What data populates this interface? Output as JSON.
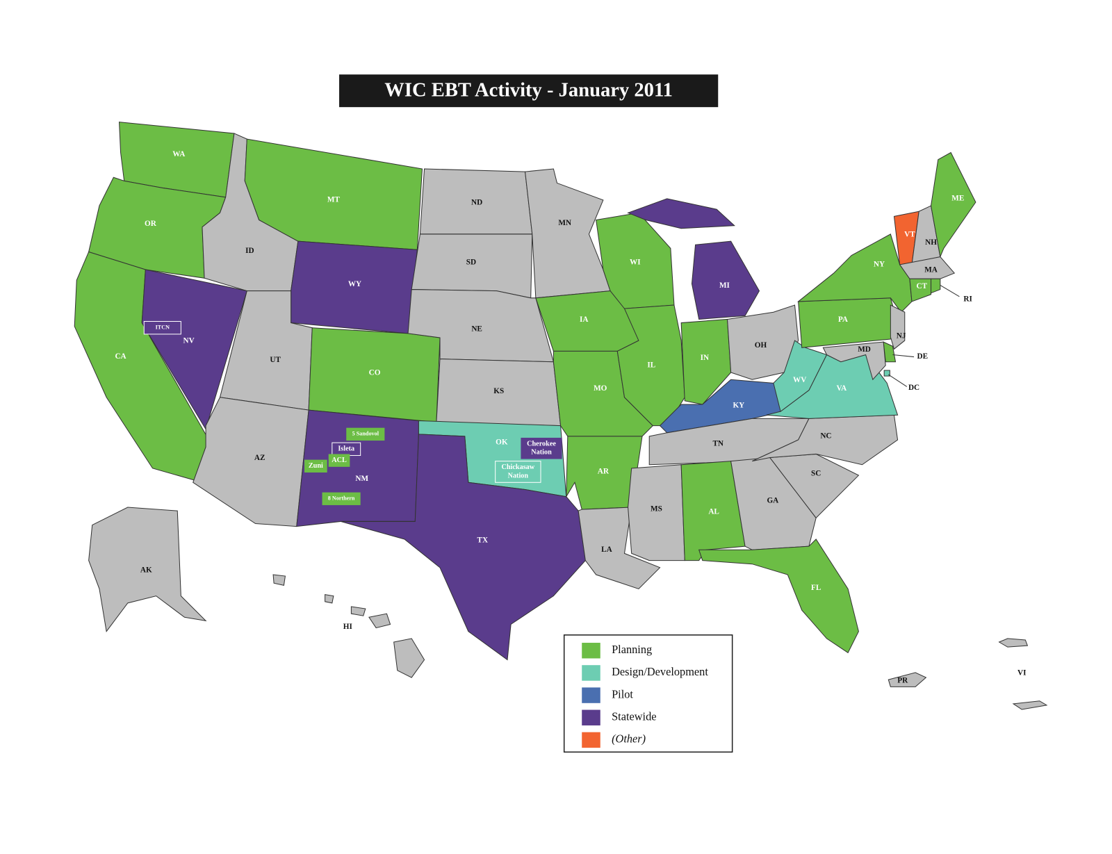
{
  "title": "WIC EBT Activity - January 2011",
  "legend": [
    {
      "label": "Planning",
      "color": "#6cbd45"
    },
    {
      "label": "Design/Development",
      "color": "#6dcdb2"
    },
    {
      "label": "Pilot",
      "color": "#4a6fb0"
    },
    {
      "label": "Statewide",
      "color": "#5a3c8c"
    },
    {
      "label": "(Other)",
      "color": "#f26430"
    }
  ],
  "no_activity_color": "#bdbdbd",
  "states": [
    {
      "label": "WA",
      "color": "#6cbd45"
    },
    {
      "label": "OR",
      "color": "#6cbd45"
    },
    {
      "label": "CA",
      "color": "#6cbd45"
    },
    {
      "label": "ID",
      "color": "#bdbdbd"
    },
    {
      "label": "NV",
      "color": "#5a3c8c"
    },
    {
      "label": "MT",
      "color": "#6cbd45"
    },
    {
      "label": "WY",
      "color": "#5a3c8c"
    },
    {
      "label": "UT",
      "color": "#bdbdbd"
    },
    {
      "label": "CO",
      "color": "#6cbd45"
    },
    {
      "label": "AZ",
      "color": "#bdbdbd"
    },
    {
      "label": "NM",
      "color": "#5a3c8c"
    },
    {
      "label": "ND",
      "color": "#bdbdbd"
    },
    {
      "label": "SD",
      "color": "#bdbdbd"
    },
    {
      "label": "NE",
      "color": "#bdbdbd"
    },
    {
      "label": "KS",
      "color": "#bdbdbd"
    },
    {
      "label": "OK",
      "color": "#6dcdb2"
    },
    {
      "label": "TX",
      "color": "#5a3c8c"
    },
    {
      "label": "MN",
      "color": "#bdbdbd"
    },
    {
      "label": "IA",
      "color": "#6cbd45"
    },
    {
      "label": "MO",
      "color": "#6cbd45"
    },
    {
      "label": "AR",
      "color": "#6cbd45"
    },
    {
      "label": "LA",
      "color": "#bdbdbd"
    },
    {
      "label": "WI",
      "color": "#6cbd45"
    },
    {
      "label": "IL",
      "color": "#6cbd45"
    },
    {
      "label": "MI",
      "color": "#5a3c8c"
    },
    {
      "label": "IN",
      "color": "#6cbd45"
    },
    {
      "label": "OH",
      "color": "#bdbdbd"
    },
    {
      "label": "KY",
      "color": "#4a6fb0"
    },
    {
      "label": "TN",
      "color": "#bdbdbd"
    },
    {
      "label": "MS",
      "color": "#bdbdbd"
    },
    {
      "label": "AL",
      "color": "#6cbd45"
    },
    {
      "label": "GA",
      "color": "#bdbdbd"
    },
    {
      "label": "FL",
      "color": "#6cbd45"
    },
    {
      "label": "SC",
      "color": "#bdbdbd"
    },
    {
      "label": "NC",
      "color": "#bdbdbd"
    },
    {
      "label": "VA",
      "color": "#6dcdb2"
    },
    {
      "label": "WV",
      "color": "#6dcdb2"
    },
    {
      "label": "PA",
      "color": "#6cbd45"
    },
    {
      "label": "NY",
      "color": "#6cbd45"
    },
    {
      "label": "VT",
      "color": "#f26430"
    },
    {
      "label": "NH",
      "color": "#bdbdbd"
    },
    {
      "label": "ME",
      "color": "#6cbd45"
    },
    {
      "label": "MA",
      "color": "#bdbdbd"
    },
    {
      "label": "CT",
      "color": "#6cbd45"
    },
    {
      "label": "RI",
      "color": "#6cbd45"
    },
    {
      "label": "NJ",
      "color": "#bdbdbd"
    },
    {
      "label": "DE",
      "color": "#6cbd45"
    },
    {
      "label": "MD",
      "color": "#bdbdbd"
    },
    {
      "label": "DC",
      "color": "#6dcdb2"
    },
    {
      "label": "AK",
      "color": "#bdbdbd"
    },
    {
      "label": "HI",
      "color": "#bdbdbd"
    },
    {
      "label": "PR",
      "color": "#bdbdbd"
    },
    {
      "label": "VI",
      "color": "#bdbdbd"
    }
  ],
  "tribal_organizations": [
    {
      "lines": [
        "ITCN"
      ],
      "color": "#5a3c8c"
    },
    {
      "lines": [
        "5 Sandovol"
      ],
      "color": "#6cbd45"
    },
    {
      "lines": [
        "Isleta"
      ],
      "color": "#5a3c8c"
    },
    {
      "lines": [
        "ACL"
      ],
      "color": "#6cbd45"
    },
    {
      "lines": [
        "Zuni"
      ],
      "color": "#6cbd45"
    },
    {
      "lines": [
        "8 Northern"
      ],
      "color": "#6cbd45"
    },
    {
      "lines": [
        "Cherokee",
        "Nation"
      ],
      "color": "#5a3c8c"
    },
    {
      "lines": [
        "Chickasaw",
        "Nation"
      ],
      "color": "#6dcdb2"
    }
  ]
}
